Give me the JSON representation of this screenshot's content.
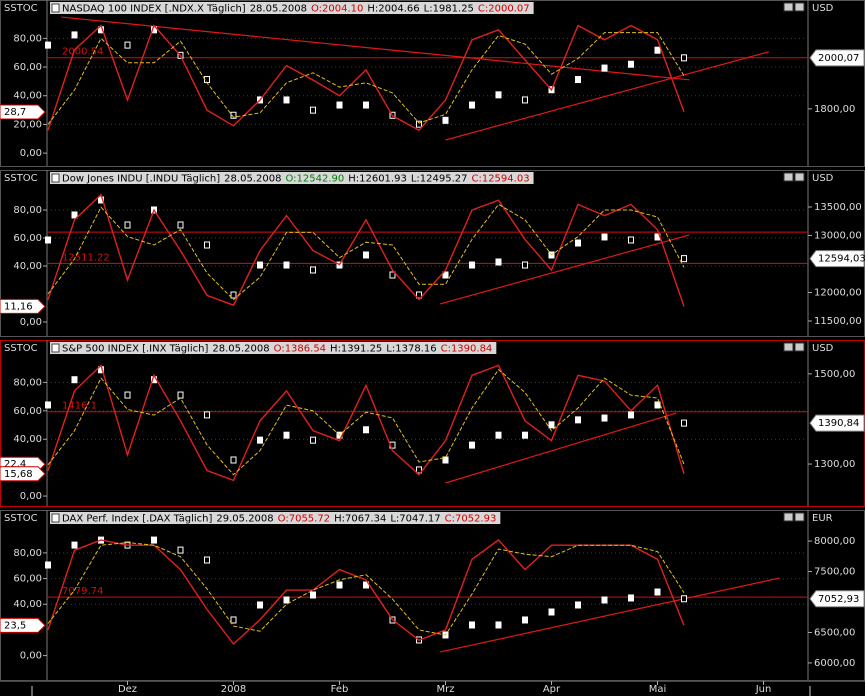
{
  "chart_data": [
    {
      "type": "stochastic",
      "indicator": "SSTOC",
      "currency": "USD",
      "title_parts": [
        {
          "text": "NASDAQ 100 INDEX [.NDX.X Täglich]",
          "color": "#000000"
        },
        {
          "text": "28.05.2008",
          "color": "#000000"
        },
        {
          "text": "O:2004.10",
          "color": "#d00000"
        },
        {
          "text": "H:2004.66",
          "color": "#000000"
        },
        {
          "text": "L:1981.25",
          "color": "#000000"
        },
        {
          "text": "C:2000.07",
          "color": "#d00000"
        }
      ],
      "ylim": [
        -9,
        97
      ],
      "yticks": [
        {
          "value": 0,
          "label": "0,00"
        },
        {
          "value": 20,
          "label": "20,00"
        },
        {
          "value": 40,
          "label": "40,00"
        },
        {
          "value": 60,
          "label": "60,00"
        },
        {
          "value": 80,
          "label": "80,00"
        }
      ],
      "y2lim": [
        1576,
        2172
      ],
      "y2ticks": [
        {
          "value": 1800,
          "label": "1800,00"
        }
      ],
      "series": [
        {
          "color": "#ffffff",
          "axis": "y2",
          "style": "candle",
          "values": [
            2050,
            2090,
            2110,
            2050,
            2110,
            2010,
            1915,
            1775,
            1835,
            1835,
            1795,
            1815,
            1815,
            1775,
            1740,
            1755,
            1815,
            1855,
            1835,
            1875,
            1915,
            1960,
            1975,
            2030,
            2000.07,
            null,
            null,
            null
          ]
        },
        {
          "color": "#e02020",
          "style": "solid",
          "values": [
            16,
            72,
            89,
            37,
            89,
            68,
            30,
            19,
            37,
            61,
            51,
            40,
            58,
            26,
            16,
            37,
            79,
            86,
            65,
            44,
            89,
            79,
            89,
            79,
            28.7,
            null,
            null,
            null
          ]
        },
        {
          "color": "#e0c020",
          "style": "dash",
          "values": [
            20,
            44,
            80,
            63,
            63,
            78,
            49,
            25,
            28,
            49,
            56,
            46,
            49,
            42,
            21,
            27,
            58,
            82,
            76,
            55,
            66,
            84,
            84,
            84,
            54,
            null,
            null,
            null
          ]
        }
      ],
      "last_close": {
        "value": 2000.07,
        "label": "2000,07"
      },
      "stoch_labels": [
        {
          "value": 28.7,
          "label": "28,7"
        }
      ],
      "hlines": [
        2000.54
      ],
      "trendlines": [
        {
          "from": [
            0.5,
            2160
          ],
          "to": [
            24.2,
            1914
          ]
        },
        {
          "from": [
            15,
            1678
          ],
          "to": [
            27.2,
            2024
          ]
        }
      ]
    },
    {
      "type": "stochastic",
      "indicator": "SSTOC",
      "currency": "USD",
      "title_parts": [
        {
          "text": "Dow Jones INDU [.INDU Täglich]",
          "color": "#000000"
        },
        {
          "text": "28.05.2008",
          "color": "#000000"
        },
        {
          "text": "O:12542.90",
          "color": "#008000"
        },
        {
          "text": "H:12601.93",
          "color": "#000000"
        },
        {
          "text": "L:12495.27",
          "color": "#000000"
        },
        {
          "text": "C:12594.03",
          "color": "#d00000"
        }
      ],
      "ylim": [
        -10,
        98.6
      ],
      "yticks": [
        {
          "value": 0,
          "label": "0,00"
        },
        {
          "value": 40,
          "label": "40,00"
        },
        {
          "value": 60,
          "label": "60,00"
        },
        {
          "value": 80,
          "label": "80,00"
        }
      ],
      "y2lim": [
        11237,
        13903
      ],
      "y2ticks": [
        {
          "value": 11500,
          "label": "11500,00"
        },
        {
          "value": 12000,
          "label": "12000,00"
        },
        {
          "value": 13000,
          "label": "13000,00"
        },
        {
          "value": 13500,
          "label": "13500,00"
        }
      ],
      "series": [
        {
          "color": "#ffffff",
          "axis": "y2",
          "style": "candle",
          "values": [
            12921,
            13360,
            13623,
            13184,
            13447,
            13184,
            12833,
            11956,
            12482,
            12482,
            12395,
            12482,
            12658,
            12307,
            11956,
            12307,
            12482,
            12535,
            12482,
            12658,
            12868,
            12974,
            12921,
            12974,
            12594.03,
            null,
            null,
            null
          ]
        },
        {
          "color": "#e02020",
          "style": "solid",
          "values": [
            16,
            73,
            91,
            30,
            80,
            51,
            19,
            12,
            51,
            76,
            51,
            41,
            73,
            37,
            16,
            37,
            80,
            87,
            59,
            37,
            84,
            76,
            84,
            66,
            11.16,
            null,
            null,
            null
          ]
        },
        {
          "color": "#e0c020",
          "style": "dash",
          "values": [
            20,
            45,
            82,
            61,
            55,
            66,
            35,
            16,
            32,
            64,
            64,
            46,
            57,
            55,
            27,
            27,
            59,
            84,
            73,
            48,
            61,
            80,
            80,
            75,
            39,
            null,
            null,
            null
          ]
        }
      ],
      "last_close": {
        "value": 12594.03,
        "label": "12594,03"
      },
      "stoch_labels": [
        {
          "value": 11.16,
          "label": "11,16"
        }
      ],
      "hlines": [
        12511.22,
        13060
      ],
      "trendlines": [
        {
          "from": [
            14.8,
            11800
          ],
          "to": [
            24.2,
            13010
          ]
        }
      ]
    },
    {
      "type": "stochastic",
      "indicator": "SSTOC",
      "currency": "USD",
      "frame_color": "#c00000",
      "title_parts": [
        {
          "text": "S&P 500 INDEX [.INX Täglich]",
          "color": "#000000"
        },
        {
          "text": "28.05.2008",
          "color": "#000000"
        },
        {
          "text": "O:1386.54",
          "color": "#d00000"
        },
        {
          "text": "H:1391.25",
          "color": "#000000"
        },
        {
          "text": "L:1378.16",
          "color": "#000000"
        },
        {
          "text": "C:1390.84",
          "color": "#d00000"
        }
      ],
      "ylim": [
        -7,
        100
      ],
      "yticks": [
        {
          "value": 0,
          "label": "0,00"
        },
        {
          "value": 40,
          "label": "40,00"
        },
        {
          "value": 60,
          "label": "60,00"
        },
        {
          "value": 80,
          "label": "80,00"
        }
      ],
      "y2lim": [
        1207,
        1544
      ],
      "y2ticks": [
        {
          "value": 1300,
          "label": "1300,00"
        },
        {
          "value": 1500,
          "label": "1500,00"
        }
      ],
      "series": [
        {
          "color": "#ffffff",
          "axis": "y2",
          "style": "candle",
          "values": [
            1431,
            1487,
            1509,
            1453,
            1487,
            1453,
            1409,
            1309,
            1353,
            1364,
            1353,
            1364,
            1376,
            1342,
            1287,
            1309,
            1342,
            1364,
            1364,
            1387,
            1398,
            1402,
            1409,
            1431,
            1390.84,
            null,
            null,
            null
          ]
        },
        {
          "color": "#e02020",
          "style": "solid",
          "values": [
            18,
            74,
            92,
            29,
            85,
            53,
            18,
            11,
            53,
            74,
            46,
            39,
            78,
            32,
            15,
            39,
            85,
            92,
            53,
            39,
            85,
            81,
            60,
            78,
            15.68,
            null,
            null,
            null
          ]
        },
        {
          "color": "#e0c020",
          "style": "dash",
          "values": [
            22,
            46,
            83,
            61,
            57,
            69,
            36,
            15,
            32,
            64,
            60,
            43,
            59,
            55,
            24,
            27,
            62,
            89,
            73,
            46,
            62,
            83,
            71,
            69,
            22.4,
            null,
            null,
            null
          ]
        }
      ],
      "last_close": {
        "value": 1390.84,
        "label": "1390,84"
      },
      "stoch_labels": [
        {
          "value": 22.4,
          "label": "22,4"
        },
        {
          "value": 15.68,
          "label": "15,68"
        }
      ],
      "hlines": [
        1416.1
      ],
      "trendlines": [
        {
          "from": [
            15,
            1258
          ],
          "to": [
            23.7,
            1413
          ]
        }
      ]
    },
    {
      "type": "stochastic",
      "indicator": "SSTOC",
      "currency": "EUR",
      "title_parts": [
        {
          "text": "DAX Perf. Index [.DAX Täglich]",
          "color": "#000000"
        },
        {
          "text": "29.05.2008",
          "color": "#000000"
        },
        {
          "text": "O:7055.72",
          "color": "#d00000"
        },
        {
          "text": "H:7067.34",
          "color": "#000000"
        },
        {
          "text": "L:7047.17",
          "color": "#000000"
        },
        {
          "text": "C:7052.93",
          "color": "#d00000"
        }
      ],
      "categories": [
        null,
        null,
        null,
        "Dez",
        null,
        null,
        null,
        "2008",
        null,
        null,
        null,
        "Feb",
        null,
        null,
        null,
        "Mrz",
        null,
        null,
        null,
        "Apr",
        null,
        null,
        null,
        "Mai",
        null,
        null,
        null,
        "Jun"
      ],
      "ylim": [
        -19,
        102.5
      ],
      "yticks": [
        {
          "value": 0,
          "label": "0,00"
        },
        {
          "value": 40,
          "label": "40,00"
        },
        {
          "value": 60,
          "label": "60,00"
        },
        {
          "value": 80,
          "label": "80,00"
        }
      ],
      "y2lim": [
        5720,
        8280
      ],
      "y2ticks": [
        {
          "value": 6000,
          "label": "6000,00"
        },
        {
          "value": 6500,
          "label": "6500,00"
        },
        {
          "value": 7500,
          "label": "7500,00"
        },
        {
          "value": 8000,
          "label": "8000,00"
        }
      ],
      "series": [
        {
          "color": "#ffffff",
          "axis": "y2",
          "style": "candle",
          "values": [
            7607,
            7934,
            8016,
            7934,
            8016,
            7852,
            7689,
            6705,
            6951,
            7033,
            7115,
            7279,
            7279,
            6705,
            6377,
            6459,
            6623,
            6623,
            6705,
            6836,
            6951,
            7033,
            7066,
            7164,
            7052.93,
            null,
            null,
            null
          ]
        },
        {
          "color": "#e02020",
          "style": "solid",
          "values": [
            20,
            82,
            90,
            86,
            86,
            67,
            36,
            9,
            28,
            51,
            51,
            67,
            59,
            28,
            12,
            20,
            75,
            90,
            67,
            86,
            86,
            86,
            86,
            75,
            23.5,
            null,
            null,
            null
          ]
        },
        {
          "color": "#e0c020",
          "style": "dash",
          "values": [
            25,
            51,
            86,
            88,
            86,
            77,
            52,
            23,
            19,
            40,
            51,
            59,
            63,
            44,
            20,
            16,
            48,
            83,
            79,
            77,
            86,
            86,
            86,
            81,
            49,
            null,
            null,
            null
          ]
        }
      ],
      "last_close": {
        "value": 7052.93,
        "label": "7052,93"
      },
      "stoch_labels": [
        {
          "value": 23.5,
          "label": "23,5"
        }
      ],
      "hlines": [
        7079.74
      ],
      "trendlines": [
        {
          "from": [
            14.8,
            6180
          ],
          "to": [
            27.6,
            7393
          ]
        }
      ]
    }
  ]
}
